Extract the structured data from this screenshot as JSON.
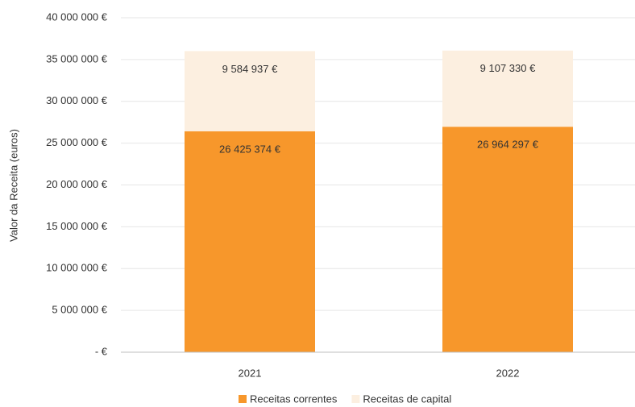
{
  "chart_data": {
    "type": "stacked_bar",
    "y_label": "Valor da Receita (euros)",
    "categories": [
      "2021",
      "2022"
    ],
    "series": [
      {
        "name": "Receitas correntes",
        "color": "#f7972b",
        "values": [
          26425374,
          26964297
        ],
        "value_labels": [
          "26 425 374 €",
          "26 964 297 €"
        ]
      },
      {
        "name": "Receitas de capital",
        "color": "#fcefe0",
        "values": [
          9584937,
          9107330
        ],
        "value_labels": [
          "9 584 937 €",
          "9 107 330 €"
        ]
      }
    ],
    "ylim": [
      0,
      40000000
    ],
    "yticks": [
      {
        "value": 0,
        "label": "- €"
      },
      {
        "value": 5000000,
        "label": "5 000 000 €"
      },
      {
        "value": 10000000,
        "label": "10 000 000 €"
      },
      {
        "value": 15000000,
        "label": "15 000 000 €"
      },
      {
        "value": 20000000,
        "label": "20 000 000 €"
      },
      {
        "value": 25000000,
        "label": "25 000 000 €"
      },
      {
        "value": 30000000,
        "label": "30 000 000 €"
      },
      {
        "value": 35000000,
        "label": "35 000 000 €"
      },
      {
        "value": 40000000,
        "label": "40 000 000 €"
      }
    ],
    "grid": true,
    "legend": "bottom"
  }
}
